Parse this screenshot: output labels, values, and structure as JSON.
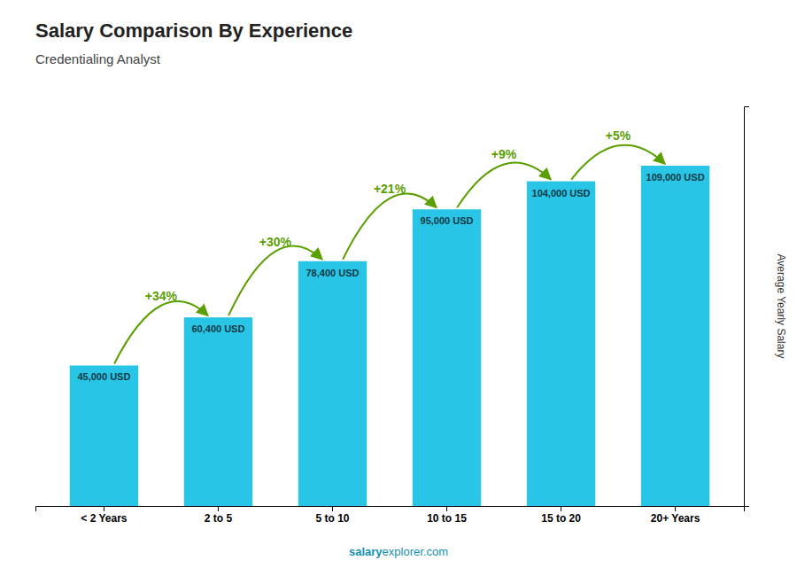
{
  "chart_data": {
    "type": "bar",
    "title": "Salary Comparison By Experience",
    "subtitle": "Credentialing Analyst",
    "ylabel": "Average Yearly Salary",
    "footer": [
      "salary",
      "explorer.com"
    ],
    "categories": [
      "< 2 Years",
      "2 to 5",
      "5 to 10",
      "10 to 15",
      "15 to 20",
      "20+ Years"
    ],
    "values": [
      45000,
      60400,
      78400,
      95000,
      104000,
      109000
    ],
    "value_labels": [
      "45,000 USD",
      "60,400 USD",
      "78,400 USD",
      "95,000 USD",
      "104,000 USD",
      "109,000 USD"
    ],
    "data_labels": true,
    "annotations": [
      "+34%",
      "+30%",
      "+21%",
      "+9%",
      "+5%"
    ],
    "color": "#29C5E6",
    "ylim": [
      0,
      128000
    ],
    "yticks": [],
    "tick_labels": "x"
  }
}
